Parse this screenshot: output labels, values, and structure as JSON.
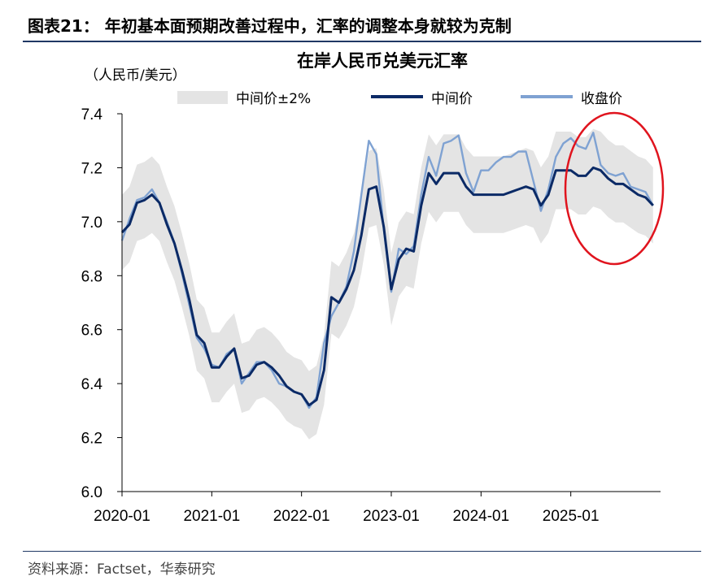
{
  "figure_title": "图表21：  年初基本面预期改善过程中，汇率的调整本身就较为克制",
  "source": "资料来源：Factset，华泰研究",
  "chart_data": {
    "type": "line",
    "title": "在岸人民币兑美元汇率",
    "unit": "（人民币/美元）",
    "xlabel": "",
    "ylabel": "",
    "ylim": [
      6.0,
      7.4
    ],
    "yticks": [
      "7.4",
      "7.2",
      "7.0",
      "6.8",
      "6.6",
      "6.4",
      "6.2",
      "6.0"
    ],
    "xticks": [
      "2020-01",
      "2021-01",
      "2022-01",
      "2023-01",
      "2024-01",
      "2025-01"
    ],
    "legend_position": "top",
    "band_pct": 0.02,
    "x": [
      "2020-01",
      "2020-02",
      "2020-03",
      "2020-04",
      "2020-05",
      "2020-06",
      "2020-07",
      "2020-08",
      "2020-09",
      "2020-10",
      "2020-11",
      "2020-12",
      "2021-01",
      "2021-02",
      "2021-03",
      "2021-04",
      "2021-05",
      "2021-06",
      "2021-07",
      "2021-08",
      "2021-09",
      "2021-10",
      "2021-11",
      "2021-12",
      "2022-01",
      "2022-02",
      "2022-03",
      "2022-04",
      "2022-05",
      "2022-06",
      "2022-07",
      "2022-08",
      "2022-09",
      "2022-10",
      "2022-11",
      "2022-12",
      "2023-01",
      "2023-02",
      "2023-03",
      "2023-04",
      "2023-05",
      "2023-06",
      "2023-07",
      "2023-08",
      "2023-09",
      "2023-10",
      "2023-11",
      "2023-12",
      "2024-01",
      "2024-02",
      "2024-03",
      "2024-04",
      "2024-05",
      "2024-06",
      "2024-07",
      "2024-08",
      "2024-09",
      "2024-10",
      "2024-11",
      "2024-12",
      "2025-01",
      "2025-02",
      "2025-03",
      "2025-04",
      "2025-05",
      "2025-06",
      "2025-07",
      "2025-08",
      "2025-09",
      "2025-10",
      "2025-11",
      "2025-12"
    ],
    "series": [
      {
        "name": "中间价±2%",
        "color": "#e4e4e4",
        "style": "band"
      },
      {
        "name": "中间价",
        "color": "#0b2a66",
        "style": "line",
        "values": [
          6.96,
          6.99,
          7.07,
          7.08,
          7.1,
          7.07,
          6.99,
          6.92,
          6.82,
          6.71,
          6.58,
          6.55,
          6.46,
          6.46,
          6.5,
          6.53,
          6.42,
          6.43,
          6.47,
          6.48,
          6.46,
          6.43,
          6.39,
          6.37,
          6.36,
          6.32,
          6.34,
          6.45,
          6.72,
          6.7,
          6.75,
          6.82,
          6.95,
          7.12,
          7.13,
          6.98,
          6.75,
          6.86,
          6.9,
          6.89,
          7.06,
          7.18,
          7.14,
          7.18,
          7.18,
          7.18,
          7.13,
          7.1,
          7.1,
          7.1,
          7.1,
          7.1,
          7.11,
          7.12,
          7.13,
          7.12,
          7.06,
          7.1,
          7.19,
          7.19,
          7.19,
          7.17,
          7.17,
          7.2,
          7.19,
          7.16,
          7.14,
          7.14,
          7.12,
          7.1,
          7.09,
          7.06
        ]
      },
      {
        "name": "收盘价",
        "color": "#7fa2d2",
        "style": "line",
        "values": [
          6.93,
          7.01,
          7.08,
          7.09,
          7.12,
          7.07,
          7.0,
          6.92,
          6.81,
          6.69,
          6.57,
          6.53,
          6.47,
          6.46,
          6.51,
          6.53,
          6.4,
          6.44,
          6.48,
          6.48,
          6.45,
          6.4,
          6.39,
          6.37,
          6.36,
          6.31,
          6.35,
          6.55,
          6.65,
          6.7,
          6.76,
          6.89,
          7.1,
          7.3,
          7.25,
          6.97,
          6.74,
          6.9,
          6.88,
          6.91,
          7.1,
          7.24,
          7.17,
          7.29,
          7.3,
          7.32,
          7.18,
          7.11,
          7.19,
          7.19,
          7.22,
          7.24,
          7.24,
          7.26,
          7.26,
          7.15,
          7.04,
          7.12,
          7.24,
          7.29,
          7.31,
          7.28,
          7.27,
          7.33,
          7.21,
          7.18,
          7.17,
          7.18,
          7.13,
          7.12,
          7.11,
          7.06
        ]
      }
    ],
    "annotation": {
      "shape": "ellipse",
      "color": "#e0141e"
    }
  }
}
